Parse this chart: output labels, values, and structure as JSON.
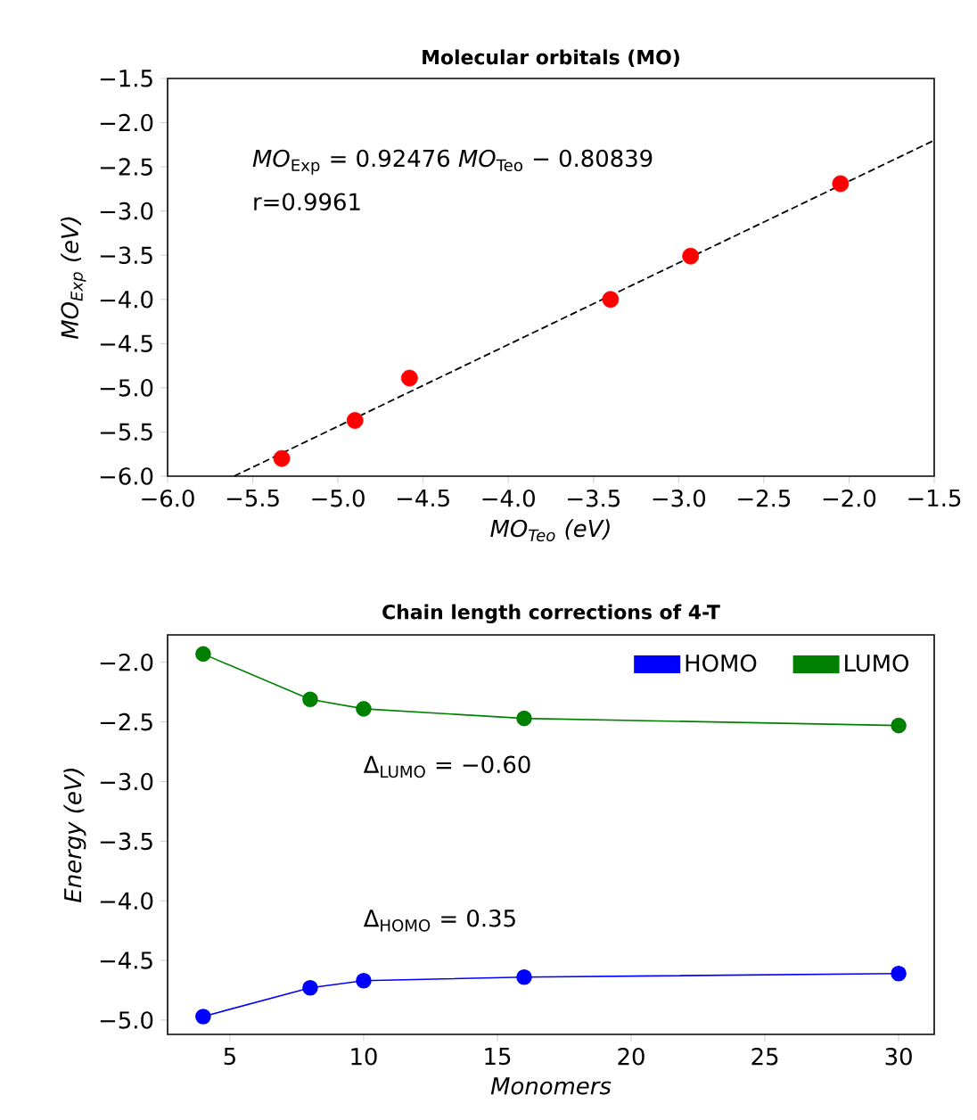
{
  "chart_data": [
    {
      "type": "scatter",
      "title": "Molecular orbitals (MO)",
      "xlabel": "MO$_{Teo}$ (eV)",
      "ylabel": "MO$_{Exp}$ (eV)",
      "annotations": [
        "*MO*$_{Exp}$ = 0.92476 *MO*$_{Teo}$ − 0.80839",
        "r=0.9961"
      ],
      "xlim": [
        -6.0,
        -1.5
      ],
      "ylim": [
        -6.0,
        -1.5
      ],
      "xticks": [
        {
          "value": -6.0,
          "label": "−6.0"
        },
        {
          "value": -5.5,
          "label": "−5.5"
        },
        {
          "value": -5.0,
          "label": "−5.0"
        },
        {
          "value": -4.5,
          "label": "−4.5"
        },
        {
          "value": -4.0,
          "label": "−4.0"
        },
        {
          "value": -3.5,
          "label": "−3.5"
        },
        {
          "value": -3.0,
          "label": "−3.0"
        },
        {
          "value": -2.5,
          "label": "−2.5"
        },
        {
          "value": -2.0,
          "label": "−2.0"
        },
        {
          "value": -1.5,
          "label": "−1.5"
        }
      ],
      "yticks": [
        {
          "value": -6.0,
          "label": "−6.0"
        },
        {
          "value": -5.5,
          "label": "−5.5"
        },
        {
          "value": -5.0,
          "label": "−5.0"
        },
        {
          "value": -4.5,
          "label": "−4.5"
        },
        {
          "value": -4.0,
          "label": "−4.0"
        },
        {
          "value": -3.5,
          "label": "−3.5"
        },
        {
          "value": -3.0,
          "label": "−3.0"
        },
        {
          "value": -2.5,
          "label": "−2.5"
        },
        {
          "value": -2.0,
          "label": "−2.0"
        },
        {
          "value": -1.5,
          "label": "−1.5"
        }
      ],
      "series": [
        {
          "color": "#ff0000",
          "marker": "circle",
          "x": [
            -5.33,
            -4.9,
            -4.58,
            -3.4,
            -2.93,
            -2.05
          ],
          "values": [
            -5.8,
            -5.37,
            -4.89,
            -4.0,
            -3.51,
            -2.69
          ]
        },
        {
          "type": "line",
          "color": "#000000",
          "marker": "none",
          "line_style": "dashed",
          "x": [
            -5.61,
            -1.5
          ],
          "values": [
            -6.0,
            -2.2
          ]
        }
      ]
    },
    {
      "type": "line",
      "title": "Chain length corrections of 4-T",
      "xlabel": "Monomers",
      "ylabel": "Energy (eV)",
      "annotations": [
        "Δ$_{LUMO}$ = −0.60",
        "Δ$_{HOMO}$ = 0.35"
      ],
      "x": [
        4,
        8,
        10,
        16,
        30
      ],
      "xlim": [
        2.67,
        31.33
      ],
      "ylim": [
        -5.12,
        -1.77
      ],
      "xticks": [
        5,
        10,
        15,
        20,
        25,
        30
      ],
      "yticks": [
        {
          "value": -5.0,
          "label": "−5.0"
        },
        {
          "value": -4.5,
          "label": "−4.5"
        },
        {
          "value": -4.0,
          "label": "−4.0"
        },
        {
          "value": -3.5,
          "label": "−3.5"
        },
        {
          "value": -3.0,
          "label": "−3.0"
        },
        {
          "value": -2.5,
          "label": "−2.5"
        },
        {
          "value": -2.0,
          "label": "−2.0"
        }
      ],
      "legend": "top right",
      "marker": "circle",
      "series": [
        {
          "name": "HOMO",
          "color": "#0000ff",
          "values": [
            -4.97,
            -4.73,
            -4.67,
            -4.64,
            -4.61
          ]
        },
        {
          "name": "LUMO",
          "color": "#008000",
          "values": [
            -1.93,
            -2.31,
            -2.39,
            -2.47,
            -2.53
          ]
        }
      ]
    }
  ]
}
